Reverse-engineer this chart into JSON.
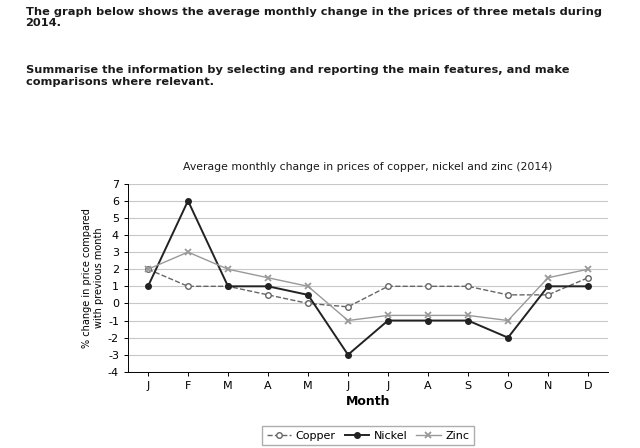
{
  "title": "Average monthly change in prices of copper, nickel and zinc (2014)",
  "xlabel": "Month",
  "ylabel": "% change in price compared\nwith previous month",
  "months": [
    "J",
    "F",
    "M",
    "A",
    "M",
    "J",
    "J",
    "A",
    "S",
    "O",
    "N",
    "D"
  ],
  "copper": [
    2.0,
    1.0,
    1.0,
    0.5,
    0.0,
    -0.2,
    1.0,
    1.0,
    1.0,
    0.5,
    0.5,
    1.5
  ],
  "nickel": [
    1.0,
    6.0,
    1.0,
    1.0,
    0.5,
    -3.0,
    -1.0,
    -1.0,
    -1.0,
    -2.0,
    1.0,
    1.0
  ],
  "zinc": [
    2.0,
    3.0,
    2.0,
    1.5,
    1.0,
    -1.0,
    -0.7,
    -0.7,
    -0.7,
    -1.0,
    1.5,
    2.0
  ],
  "ylim": [
    -4,
    7
  ],
  "yticks": [
    -4,
    -3,
    -2,
    -1,
    0,
    1,
    2,
    3,
    4,
    5,
    6,
    7
  ],
  "background_color": "#ffffff",
  "grid_color": "#c8c8c8",
  "copper_color": "#666666",
  "nickel_color": "#222222",
  "zinc_color": "#999999",
  "text_color": "#1a1a1a",
  "header_line1": "The graph below shows the average monthly change in the prices of three metals during 2014.",
  "header_line2": "Summarise the information by selecting and reporting the main features, and make comparisons where relevant."
}
